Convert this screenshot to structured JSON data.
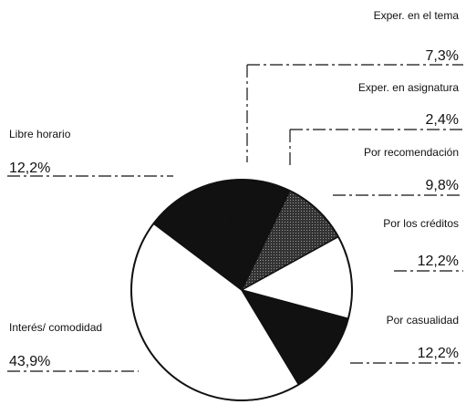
{
  "chart_data": {
    "type": "pie",
    "categories": [
      "Libre horario",
      "Exper. en el tema",
      "Exper. en asignatura",
      "Por recomendación",
      "Por los créditos",
      "Por casualidad",
      "Interés/ comodidad"
    ],
    "values": [
      12.2,
      7.3,
      2.4,
      9.8,
      12.2,
      12.2,
      43.9
    ],
    "value_labels": [
      "12,2%",
      "7,3%",
      "2,4%",
      "9,8%",
      "12,2%",
      "12,2%",
      "43,9%"
    ],
    "colors": [
      "#111111",
      "#111111",
      "#111111",
      "#555555",
      "#ffffff",
      "#111111",
      "#ffffff"
    ]
  }
}
